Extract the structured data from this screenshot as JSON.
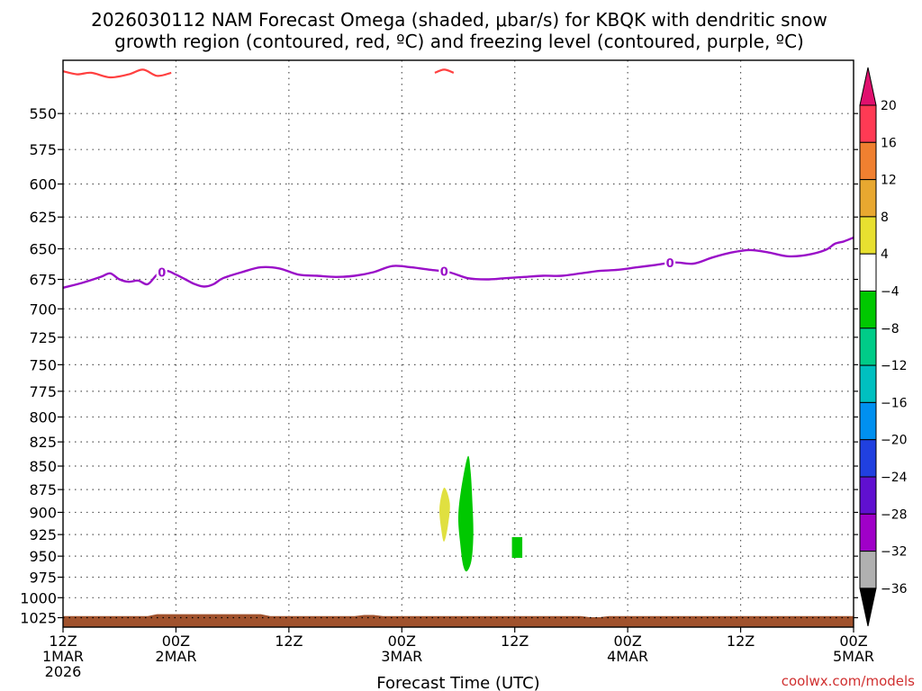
{
  "title": {
    "line1": "2026030112 NAM Forecast Omega (shaded, μbar/s) for KBQK with dendritic snow",
    "line2": "growth region (contoured, red, ºC) and freezing level (contoured, purple, ºC)"
  },
  "credit": "coolwx.com/models",
  "chart_data": {
    "type": "contour",
    "xlabel": "Forecast Time (UTC)",
    "x_range_hours": [
      0,
      84
    ],
    "x_ticks": [
      {
        "hour": 0,
        "line1": "12Z",
        "line2": "1MAR",
        "line3": "2026"
      },
      {
        "hour": 12,
        "line1": "00Z",
        "line2": "2MAR",
        "line3": ""
      },
      {
        "hour": 24,
        "line1": "12Z",
        "line2": "",
        "line3": ""
      },
      {
        "hour": 36,
        "line1": "00Z",
        "line2": "3MAR",
        "line3": ""
      },
      {
        "hour": 48,
        "line1": "12Z",
        "line2": "",
        "line3": ""
      },
      {
        "hour": 60,
        "line1": "00Z",
        "line2": "4MAR",
        "line3": ""
      },
      {
        "hour": 72,
        "line1": "12Z",
        "line2": "",
        "line3": ""
      },
      {
        "hour": 84,
        "line1": "00Z",
        "line2": "5MAR",
        "line3": ""
      }
    ],
    "ylabel": "",
    "y_range_mb": [
      515,
      1037
    ],
    "y_ticks": [
      550,
      575,
      600,
      625,
      650,
      675,
      700,
      725,
      750,
      775,
      800,
      825,
      850,
      875,
      900,
      925,
      950,
      975,
      1000,
      1025
    ],
    "y_scale": "log-pressure",
    "grid": true,
    "colorbar": {
      "labels": [
        "20",
        "16",
        "12",
        "8",
        "4",
        "−4",
        "−8",
        "−12",
        "−16",
        "−20",
        "−24",
        "−28",
        "−32",
        "−36"
      ],
      "colors": [
        "#ff3a54",
        "#f08030",
        "#e8a830",
        "#e8e030",
        "#ffffff",
        "#00c800",
        "#00cc88",
        "#00c0c0",
        "#0090f0",
        "#2040e0",
        "#6010d0",
        "#a000c8",
        "#b0b0b0"
      ],
      "top_arrow_color": "#e0106e",
      "bottom_arrow_color": "#000000"
    },
    "freezing_level": {
      "label": "0",
      "color": "#9a10c8",
      "label_hours": [
        10.5,
        40.5,
        64.5
      ],
      "points": [
        [
          0,
          682
        ],
        [
          2,
          678
        ],
        [
          4,
          673
        ],
        [
          5,
          670
        ],
        [
          6,
          675
        ],
        [
          7,
          677
        ],
        [
          8,
          676
        ],
        [
          9,
          679
        ],
        [
          10,
          671
        ],
        [
          11,
          668
        ],
        [
          12,
          671
        ],
        [
          13,
          675
        ],
        [
          14,
          679
        ],
        [
          15,
          681
        ],
        [
          16,
          679
        ],
        [
          17,
          674
        ],
        [
          19,
          669
        ],
        [
          21,
          665
        ],
        [
          23,
          666
        ],
        [
          25,
          671
        ],
        [
          27,
          672
        ],
        [
          29,
          673
        ],
        [
          31,
          672
        ],
        [
          33,
          669
        ],
        [
          35,
          664
        ],
        [
          37,
          665
        ],
        [
          39,
          667
        ],
        [
          41,
          669
        ],
        [
          43,
          674
        ],
        [
          45,
          675
        ],
        [
          47,
          674
        ],
        [
          49,
          673
        ],
        [
          51,
          672
        ],
        [
          53,
          672
        ],
        [
          55,
          670
        ],
        [
          57,
          668
        ],
        [
          59,
          667
        ],
        [
          61,
          665
        ],
        [
          63,
          663
        ],
        [
          65,
          661
        ],
        [
          67,
          662
        ],
        [
          69,
          657
        ],
        [
          71,
          653
        ],
        [
          73,
          651
        ],
        [
          75,
          653
        ],
        [
          77,
          656
        ],
        [
          79,
          655
        ],
        [
          81,
          651
        ],
        [
          82,
          646
        ],
        [
          83,
          644
        ],
        [
          84,
          641
        ]
      ]
    },
    "dendritic_region": {
      "color": "#ff4040",
      "segments": [
        [
          [
            0,
            522
          ],
          [
            1.5,
            524
          ],
          [
            3,
            523
          ],
          [
            5,
            526
          ],
          [
            7,
            524
          ],
          [
            8.5,
            521
          ],
          [
            10,
            525
          ],
          [
            11.5,
            523
          ]
        ],
        [
          [
            39.5,
            523
          ],
          [
            40.5,
            521
          ],
          [
            41.5,
            523
          ]
        ]
      ]
    },
    "omega_areas": [
      {
        "color": "#e0e040",
        "value_range": [
          4,
          8
        ],
        "points": [
          [
            40.5,
            873
          ],
          [
            40.0,
            895
          ],
          [
            40.2,
            920
          ],
          [
            40.5,
            933
          ],
          [
            40.9,
            915
          ],
          [
            41.1,
            890
          ]
        ]
      },
      {
        "color": "#00c800",
        "value_range": [
          -8,
          -4
        ],
        "points": [
          [
            43.0,
            840
          ],
          [
            42.3,
            875
          ],
          [
            42.0,
            905
          ],
          [
            42.2,
            935
          ],
          [
            42.5,
            960
          ],
          [
            42.9,
            968
          ],
          [
            43.4,
            955
          ],
          [
            43.6,
            925
          ],
          [
            43.5,
            890
          ],
          [
            43.3,
            855
          ]
        ]
      },
      {
        "color": "#00c800",
        "value_range": [
          -8,
          -4
        ],
        "points": [
          [
            47.7,
            928
          ],
          [
            48.8,
            928
          ],
          [
            48.8,
            952
          ],
          [
            47.7,
            952
          ]
        ]
      }
    ],
    "ground": {
      "color": "#a0522d",
      "top_mb": 1023
    }
  },
  "x_axis_title": "Forecast Time (UTC)"
}
